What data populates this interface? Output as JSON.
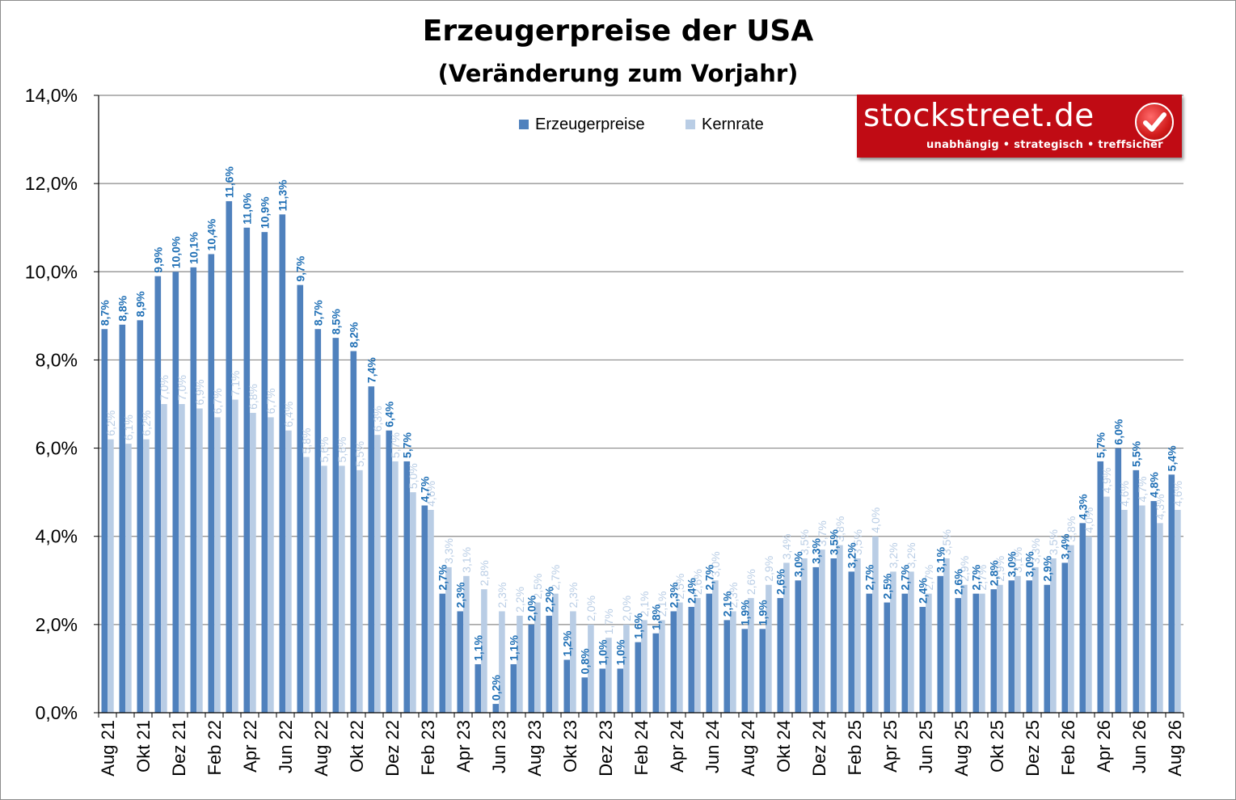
{
  "chart_data": {
    "type": "bar",
    "title": "Erzeugerpreise der USA",
    "subtitle": "(Veränderung zum Vorjahr)",
    "categories": [
      "Aug 21",
      "Sep 21",
      "Okt 21",
      "Nov 21",
      "Dez 21",
      "Jan 22",
      "Feb 22",
      "Mrz 22",
      "Apr 22",
      "Mai 22",
      "Jun 22",
      "Jul 22",
      "Aug 22",
      "Sep 22",
      "Okt 22",
      "Nov 22",
      "Dez 22",
      "Jan 23",
      "Feb 23",
      "Mrz 23",
      "Apr 23",
      "Mai 23",
      "Jun 23",
      "Jul 23",
      "Aug 23",
      "Sep 23",
      "Okt 23",
      "Nov 23",
      "Dez 23",
      "Jan 24",
      "Feb 24",
      "Mrz 24",
      "Apr 24",
      "Mai 24",
      "Jun 24",
      "Jul 24",
      "Aug 24",
      "Sep 24",
      "Okt 24",
      "Nov 24",
      "Dez 24",
      "Jan 25",
      "Feb 25",
      "Mrz 25",
      "Apr 25",
      "Mai 25",
      "Jun 25",
      "Jul 25",
      "Aug 25",
      "Sep 25",
      "Okt 25",
      "Nov 25",
      "Dez 25",
      "Jan 26",
      "Feb 26",
      "Mrz 26",
      "Apr 26",
      "Mai 26",
      "Jun 26",
      "Jul 26",
      "Aug 26"
    ],
    "x_tick_labels": [
      "Aug 21",
      "Okt 21",
      "Dez 21",
      "Feb 22",
      "Apr 22",
      "Jun 22",
      "Aug 22",
      "Okt 22",
      "Dez 22",
      "Feb 23",
      "Apr 23",
      "Jun 23",
      "Aug 23",
      "Okt 23",
      "Dez 23",
      "Feb 24",
      "Apr 24",
      "Jun 24",
      "Aug 24",
      "Okt 24",
      "Dez 24",
      "Feb 25",
      "Apr 25",
      "Jun 25",
      "Aug 25",
      "Okt 25",
      "Dez 25",
      "Feb 26",
      "Apr 26",
      "Jun 26",
      "Aug 26"
    ],
    "series": [
      {
        "name": "Erzeugerpreise",
        "color": "#4f81bd",
        "label_color": "#1f6fb5",
        "values": [
          8.7,
          8.8,
          8.9,
          9.9,
          10.0,
          10.1,
          10.4,
          11.6,
          11.0,
          10.9,
          11.3,
          9.7,
          8.7,
          8.5,
          8.2,
          7.4,
          6.4,
          5.7,
          4.7,
          2.7,
          2.3,
          1.1,
          0.2,
          1.1,
          2.0,
          2.2,
          1.2,
          0.8,
          1.0,
          1.0,
          1.6,
          1.8,
          2.3,
          2.4,
          2.7,
          2.1,
          1.9,
          1.9,
          2.6,
          3.0,
          3.3,
          3.5,
          3.2,
          2.7,
          2.5,
          2.7,
          2.4,
          3.1,
          2.6,
          2.7,
          2.8,
          3.0,
          3.0,
          2.9,
          3.4,
          4.3,
          5.7,
          6.0,
          5.5,
          4.8,
          5.4
        ]
      },
      {
        "name": "Kernrate",
        "color": "#b9cde5",
        "label_color": "#b9cde5",
        "values": [
          6.2,
          6.1,
          6.2,
          7.0,
          7.0,
          6.9,
          6.7,
          7.1,
          6.8,
          6.7,
          6.4,
          5.8,
          5.6,
          5.6,
          5.5,
          6.3,
          5.7,
          5.0,
          4.6,
          3.3,
          3.1,
          2.8,
          2.3,
          2.2,
          2.5,
          2.7,
          2.3,
          2.0,
          1.7,
          2.0,
          2.1,
          2.1,
          2.5,
          2.6,
          3.0,
          2.3,
          2.6,
          2.9,
          3.4,
          3.5,
          3.7,
          3.8,
          3.5,
          4.0,
          3.2,
          3.2,
          2.7,
          3.5,
          2.9,
          2.7,
          2.9,
          3.1,
          3.3,
          3.5,
          3.8,
          4.0,
          4.9,
          4.6,
          4.7,
          4.3,
          4.6
        ]
      }
    ],
    "y_tick_labels": [
      "0,0%",
      "2,0%",
      "4,0%",
      "6,0%",
      "8,0%",
      "10,0%",
      "12,0%",
      "14,0%"
    ],
    "ylim": [
      0,
      14
    ],
    "ylabel": "",
    "xlabel": "",
    "grid": true,
    "legend_position": "top"
  },
  "logo": {
    "name": "stockstreet.de",
    "tagline": "unabhängig • strategisch • treffsicher"
  }
}
